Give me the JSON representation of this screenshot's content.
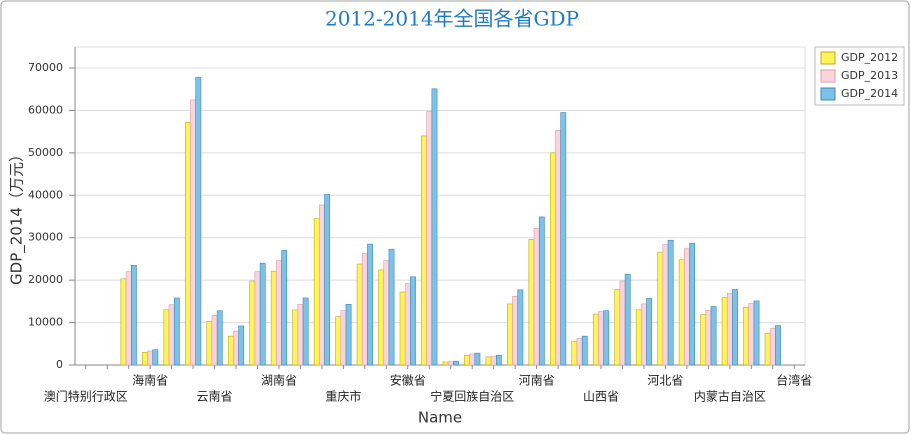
{
  "chart_data": {
    "type": "bar",
    "title": "2012-2014年全国各省GDP",
    "x_label": "Name",
    "y_label": "GDP_2014（万元）",
    "categories": [
      "澳门特别行政区",
      null,
      null,
      "海南省",
      null,
      null,
      "云南省",
      null,
      null,
      "湖南省",
      null,
      null,
      "重庆市",
      null,
      null,
      "安徽省",
      null,
      null,
      "宁夏回族自治区",
      null,
      null,
      "河南省",
      null,
      null,
      "山西省",
      null,
      null,
      "河北省",
      null,
      null,
      "内蒙古自治区",
      null,
      null,
      "台湾省"
    ],
    "series": [
      {
        "name": "GDP_2012",
        "color": "#fff35a",
        "values": [
          null,
          null,
          20300,
          3000,
          13000,
          57200,
          10300,
          6800,
          19800,
          22100,
          13000,
          34500,
          11400,
          23800,
          22400,
          17200,
          54000,
          700,
          2300,
          1900,
          14400,
          29600,
          50000,
          5600,
          12000,
          17800,
          13000,
          26600,
          24800,
          11900,
          15900,
          13600,
          7500,
          null
        ]
      },
      {
        "name": "GDP_2013",
        "color": "#fbd3dc",
        "values": [
          null,
          null,
          22000,
          3300,
          14200,
          62500,
          11700,
          8000,
          22000,
          24600,
          14300,
          37700,
          12800,
          26300,
          24600,
          19200,
          59800,
          800,
          2600,
          2100,
          16200,
          32200,
          55300,
          6300,
          12600,
          19800,
          14400,
          28400,
          27400,
          12900,
          16900,
          14500,
          8600,
          null
        ]
      },
      {
        "name": "GDP_2014",
        "color": "#7cc1e8",
        "values": [
          null,
          null,
          23500,
          3600,
          15800,
          67800,
          12800,
          9200,
          24000,
          27000,
          15800,
          40200,
          14300,
          28500,
          27300,
          20800,
          65100,
          900,
          2800,
          2300,
          17700,
          34900,
          59500,
          6800,
          12800,
          21400,
          15700,
          29400,
          28700,
          13800,
          17800,
          15100,
          9300,
          null
        ]
      }
    ],
    "ylim": [
      0,
      70000
    ],
    "yticks": [
      0,
      10000,
      20000,
      30000,
      40000,
      50000,
      60000,
      70000
    ],
    "grid": true,
    "legend": "top-right"
  }
}
